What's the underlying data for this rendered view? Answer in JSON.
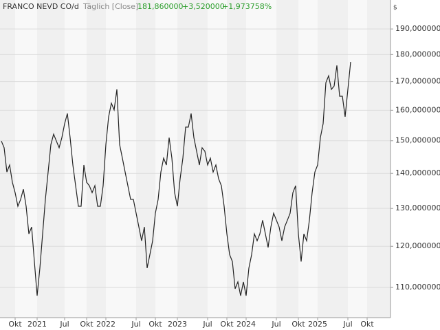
{
  "chart_data": {
    "type": "line",
    "title": "FRANCO NEVD CO/d",
    "subtitle": "Täglich [Close]",
    "last_value": "181,860000",
    "change": "+3,520000",
    "change_percent": "+1,973758%",
    "y_axis_label": "$",
    "log_scale": true,
    "grid": true,
    "categories": [
      null,
      null,
      null,
      null,
      null,
      "Okt",
      null,
      null,
      null,
      null,
      null,
      null,
      null,
      "2021",
      null,
      null,
      null,
      null,
      null,
      null,
      null,
      null,
      null,
      "Jul",
      null,
      null,
      null,
      null,
      null,
      null,
      null,
      "Okt",
      null,
      null,
      null,
      null,
      null,
      null,
      "2022",
      null,
      null,
      null,
      null,
      null,
      null,
      null,
      null,
      null,
      null,
      "Jul",
      null,
      null,
      null,
      null,
      null,
      null,
      "Okt",
      null,
      null,
      null,
      null,
      null,
      null,
      null,
      "2023",
      null,
      null,
      null,
      null,
      null,
      null,
      null,
      null,
      null,
      null,
      "Jul",
      null,
      null,
      null,
      null,
      null,
      null,
      "Okt",
      null,
      null,
      null,
      null,
      null,
      null,
      "2024",
      null,
      null,
      null,
      null,
      null,
      null,
      null,
      null,
      null,
      null,
      "Jul",
      null,
      null,
      null,
      null,
      null,
      null,
      null,
      "Okt",
      null,
      null,
      null,
      null,
      null,
      null,
      "2025",
      null,
      null,
      null,
      null,
      null,
      null,
      null,
      null,
      null,
      null,
      "Jul",
      null,
      null,
      null,
      null,
      null,
      null,
      "Okt",
      null,
      null,
      null,
      null,
      null,
      null,
      null,
      null
    ],
    "series": [
      {
        "name": "FRANCO NEVD CO/d",
        "color": "#222222",
        "values": [
          149.9,
          147.8,
          140.4,
          142.5,
          137.4,
          134.4,
          130.6,
          132.5,
          135.4,
          130.6,
          123.2,
          125.0,
          116.2,
          108.1,
          114.6,
          123.2,
          132.5,
          140.4,
          148.8,
          152.1,
          149.9,
          147.8,
          151.0,
          155.5,
          158.9,
          151.0,
          142.5,
          136.4,
          130.6,
          130.6,
          142.5,
          137.4,
          136.4,
          134.4,
          136.4,
          130.6,
          130.6,
          136.4,
          148.8,
          157.8,
          162.4,
          160.1,
          167.2,
          148.8,
          144.6,
          140.4,
          136.4,
          132.5,
          132.5,
          128.7,
          125.0,
          121.4,
          125.0,
          114.6,
          117.9,
          121.4,
          128.7,
          132.5,
          140.4,
          144.6,
          142.5,
          151.0,
          144.6,
          134.4,
          130.6,
          138.4,
          144.6,
          154.4,
          154.4,
          158.9,
          151.0,
          146.7,
          142.5,
          147.8,
          146.7,
          142.5,
          144.6,
          140.4,
          142.5,
          138.4,
          136.4,
          130.6,
          123.2,
          117.9,
          116.2,
          109.7,
          111.3,
          108.1,
          111.3,
          108.1,
          114.6,
          117.9,
          123.2,
          121.4,
          123.2,
          126.8,
          123.2,
          119.7,
          125.0,
          128.7,
          126.8,
          125.0,
          121.4,
          125.0,
          126.8,
          128.7,
          134.4,
          136.4,
          123.2,
          116.2,
          123.2,
          121.4,
          126.8,
          134.4,
          140.4,
          142.5,
          151.0,
          155.5,
          169.6,
          172.1,
          167.2,
          168.4,
          175.9,
          164.8,
          164.8,
          157.8,
          167.2,
          177.2,
          null,
          null,
          null,
          null,
          null,
          null,
          null,
          null,
          null,
          null,
          null,
          null,
          null,
          null
        ]
      }
    ],
    "ylim": [
      103.2,
      202
    ],
    "yticks": [
      {
        "value": 110,
        "label": "110,000000"
      },
      {
        "value": 120,
        "label": "120,000000"
      },
      {
        "value": 130,
        "label": "130,000000"
      },
      {
        "value": 140,
        "label": "140,000000"
      },
      {
        "value": 150,
        "label": "150,000000"
      },
      {
        "value": 160,
        "label": "160,000000"
      },
      {
        "value": 170,
        "label": "170,000000"
      },
      {
        "value": 180,
        "label": "180,000000"
      },
      {
        "value": 190,
        "label": "190,000000"
      }
    ]
  }
}
